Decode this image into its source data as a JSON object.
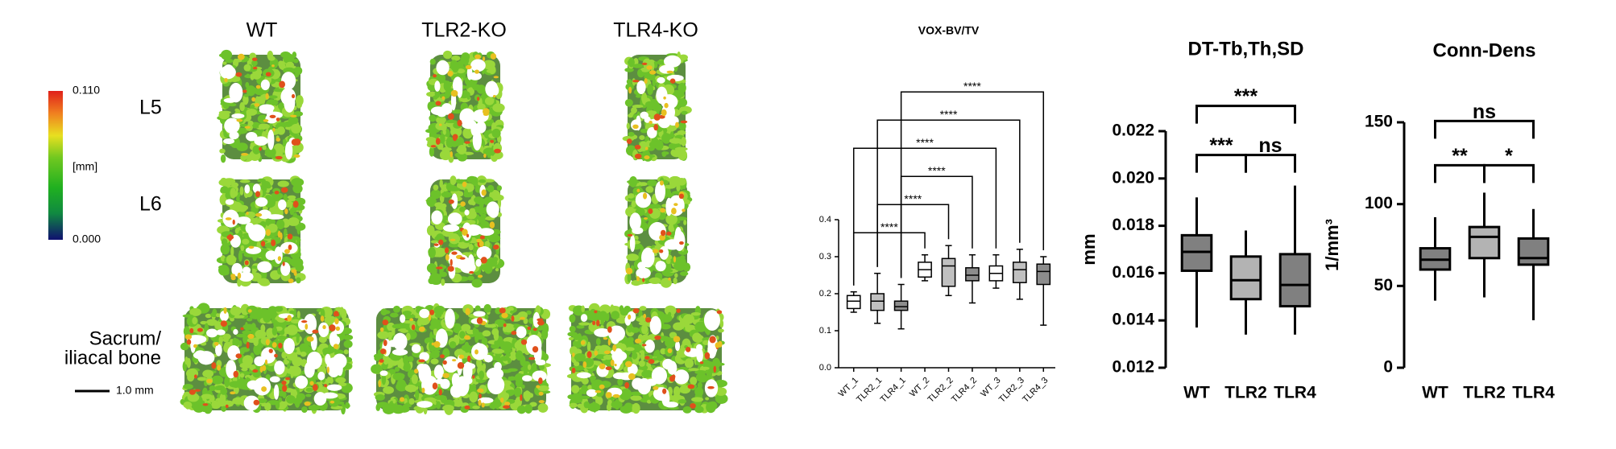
{
  "image_panel": {
    "columns": [
      "WT",
      "TLR2-KO",
      "TLR4-KO"
    ],
    "rows": [
      [
        "L5"
      ],
      [
        "L6"
      ],
      [
        "Sacrum/",
        "iliacal bone"
      ]
    ],
    "colorbar": {
      "lim": [
        0,
        0.11
      ],
      "ticks": [
        {
          "value": 0,
          "label": "0.000"
        },
        {
          "value": 0.11,
          "label": "0.110"
        }
      ],
      "label": "[mm]"
    },
    "scale_bar": "1.0 mm"
  },
  "chart_data": [
    {
      "type": "box",
      "title": "VOX-BV/TV",
      "categories": [
        "WT_1",
        "TLR2_1",
        "TLR4_1",
        "WT_2",
        "TLR2_2",
        "TLR4_2",
        "WT_3",
        "TLR2_3",
        "TLR4_3"
      ],
      "boxes": [
        {
          "min": 0.15,
          "q1": 0.16,
          "median": 0.18,
          "q3": 0.195,
          "max": 0.205,
          "color": "#ffffff"
        },
        {
          "min": 0.12,
          "q1": 0.155,
          "median": 0.18,
          "q3": 0.2,
          "max": 0.255,
          "color": "#c0c0c0"
        },
        {
          "min": 0.105,
          "q1": 0.155,
          "median": 0.165,
          "q3": 0.18,
          "max": 0.225,
          "color": "#8c8c8c"
        },
        {
          "min": 0.235,
          "q1": 0.245,
          "median": 0.265,
          "q3": 0.285,
          "max": 0.305,
          "color": "#ffffff"
        },
        {
          "min": 0.195,
          "q1": 0.22,
          "median": 0.275,
          "q3": 0.295,
          "max": 0.33,
          "color": "#c0c0c0"
        },
        {
          "min": 0.175,
          "q1": 0.235,
          "median": 0.25,
          "q3": 0.27,
          "max": 0.305,
          "color": "#8c8c8c"
        },
        {
          "min": 0.215,
          "q1": 0.235,
          "median": 0.255,
          "q3": 0.275,
          "max": 0.305,
          "color": "#ffffff"
        },
        {
          "min": 0.185,
          "q1": 0.23,
          "median": 0.265,
          "q3": 0.285,
          "max": 0.32,
          "color": "#c0c0c0"
        },
        {
          "min": 0.115,
          "q1": 0.225,
          "median": 0.26,
          "q3": 0.28,
          "max": 0.3,
          "color": "#8c8c8c"
        }
      ],
      "brackets": [
        {
          "from": 0,
          "to": 3,
          "label": "****"
        },
        {
          "from": 1,
          "to": 4,
          "label": "****"
        },
        {
          "from": 2,
          "to": 5,
          "label": "****"
        },
        {
          "from": 0,
          "to": 6,
          "label": "****"
        },
        {
          "from": 1,
          "to": 7,
          "label": "****"
        },
        {
          "from": 2,
          "to": 8,
          "label": "****"
        }
      ],
      "ylim": [
        0,
        0.4
      ],
      "yticks": [
        {
          "value": 0,
          "label": "0.0"
        },
        0.1,
        0.2,
        0.3,
        0.4
      ]
    },
    {
      "type": "box",
      "title": "DT-Tb,Th,SD",
      "ylabel": "mm",
      "categories": [
        "WT",
        "TLR2",
        "TLR4"
      ],
      "boxes": [
        {
          "min": 0.0137,
          "q1": 0.0161,
          "median": 0.0169,
          "q3": 0.0176,
          "max": 0.0192,
          "color": "#808080"
        },
        {
          "min": 0.0134,
          "q1": 0.0149,
          "median": 0.0157,
          "q3": 0.0167,
          "max": 0.0178,
          "color": "#b3b3b3"
        },
        {
          "min": 0.0134,
          "q1": 0.0146,
          "median": 0.0155,
          "q3": 0.0168,
          "max": 0.0197,
          "color": "#808080"
        }
      ],
      "brackets": [
        {
          "from": 0,
          "to": 1,
          "label": "***"
        },
        {
          "from": 1,
          "to": 2,
          "label": "ns"
        },
        {
          "from": 0,
          "to": 2,
          "label": "***"
        }
      ],
      "ylim": [
        0.012,
        0.022
      ],
      "yticks": [
        0.012,
        0.014,
        0.016,
        0.018,
        {
          "value": 0.02,
          "label": "0.020"
        },
        0.022
      ]
    },
    {
      "type": "box",
      "title": "Conn-Dens",
      "ylabel": "1/mm³",
      "categories": [
        "WT",
        "TLR2",
        "TLR4"
      ],
      "boxes": [
        {
          "min": 41,
          "q1": 60,
          "median": 66,
          "q3": 73,
          "max": 92,
          "color": "#808080"
        },
        {
          "min": 43,
          "q1": 67,
          "median": 80,
          "q3": 86,
          "max": 107,
          "color": "#b3b3b3"
        },
        {
          "min": 29,
          "q1": 63,
          "median": 67,
          "q3": 79,
          "max": 97,
          "color": "#808080"
        }
      ],
      "brackets": [
        {
          "from": 0,
          "to": 1,
          "label": "**"
        },
        {
          "from": 1,
          "to": 2,
          "label": "*"
        },
        {
          "from": 0,
          "to": 2,
          "label": "ns"
        }
      ],
      "ylim": [
        0,
        150
      ],
      "yticks": [
        0,
        50,
        100,
        150
      ]
    }
  ]
}
